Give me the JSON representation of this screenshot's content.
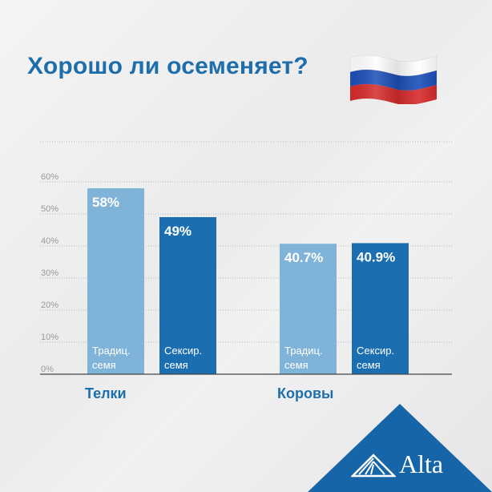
{
  "title": "Хорошо ли осеменяет?",
  "brand": "Alta",
  "colors": {
    "title": "#1f6eac",
    "traditional_bar": "#80b3d8",
    "sexed_bar": "#1b6fb0",
    "axis_text": "#9a9a9a",
    "group_label": "#1f6eac",
    "logo_bg": "#1565a8"
  },
  "icons": {
    "flag": "russia-flag-icon",
    "logo": "alta-mountain-logo-icon"
  },
  "chart_data": {
    "type": "bar",
    "title": "Хорошо ли осеменяет?",
    "ylim": [
      0,
      60
    ],
    "y_ticks": [
      "0%",
      "10%",
      "20%",
      "30%",
      "40%",
      "50%",
      "60%"
    ],
    "categories": [
      "Телки",
      "Коровы"
    ],
    "series": [
      {
        "name": "Традиц. семя",
        "values": [
          58,
          40.7
        ],
        "labels": [
          "58%",
          "40.7%"
        ]
      },
      {
        "name": "Сексир. семя",
        "values": [
          49,
          40.9
        ],
        "labels": [
          "49%",
          "40.9%"
        ]
      }
    ],
    "bar_captions": [
      [
        "Традиц.",
        "семя"
      ],
      [
        "Сексир.",
        "семя"
      ]
    ],
    "grid": true
  }
}
